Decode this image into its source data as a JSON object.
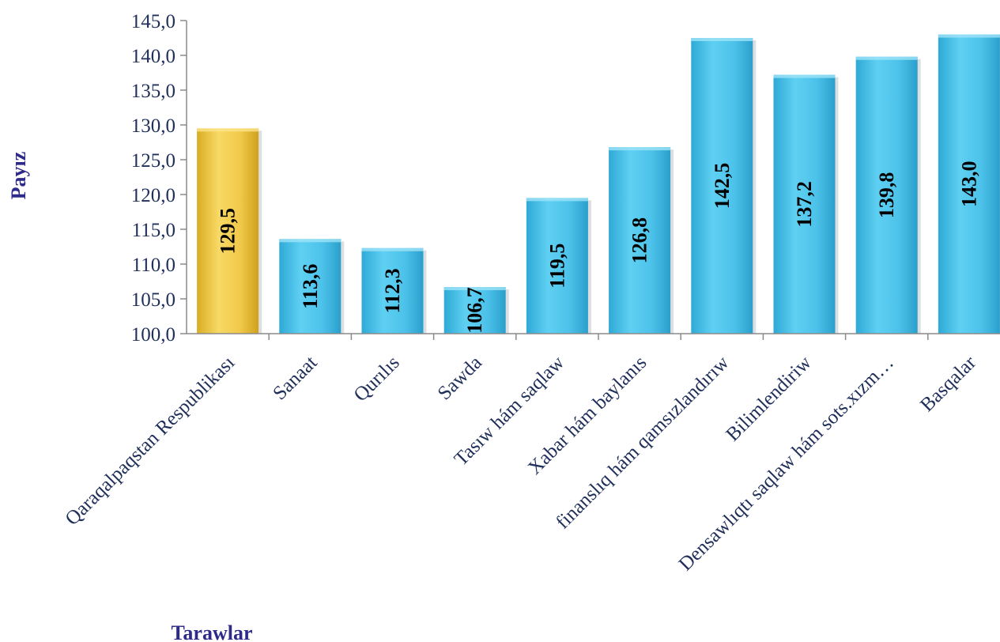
{
  "chart_data": {
    "type": "bar",
    "categories": [
      "Qaraqalpaqstan Respublikası",
      "Sanaat",
      "Qurılıs",
      "Sawda",
      "Tasıw hám saqlaw",
      "Xabar hám baylanıs",
      "finanslıq hám qamsızlandırıw",
      "Bilimlendiriw",
      "Densawlıqtı saqlaw hám sots.xızm…",
      "Basqalar"
    ],
    "values": [
      129.5,
      113.6,
      112.3,
      106.7,
      119.5,
      126.8,
      142.5,
      137.2,
      139.8,
      143.0
    ],
    "value_labels": [
      "129,5",
      "113,6",
      "112,3",
      "106,7",
      "119,5",
      "126,8",
      "142,5",
      "137,2",
      "139,8",
      "143,0"
    ],
    "ylim": [
      100,
      145
    ],
    "yticks": [
      100,
      105,
      110,
      115,
      120,
      125,
      130,
      135,
      140,
      145
    ],
    "ytick_labels": [
      "100,0",
      "105,0",
      "110,0",
      "115,0",
      "120,0",
      "125,0",
      "130,0",
      "135,0",
      "140,0",
      "145,0"
    ],
    "ylabel": "Payız",
    "xlabel": "Tarawlar",
    "grid": false,
    "highlight_index": 0,
    "colors": {
      "highlight": "#f2cc4a",
      "bar": "#4dc3ea",
      "axis": "#8a8a8a",
      "text": "#1f2f5a",
      "axis_title": "#2e2a8a"
    }
  }
}
